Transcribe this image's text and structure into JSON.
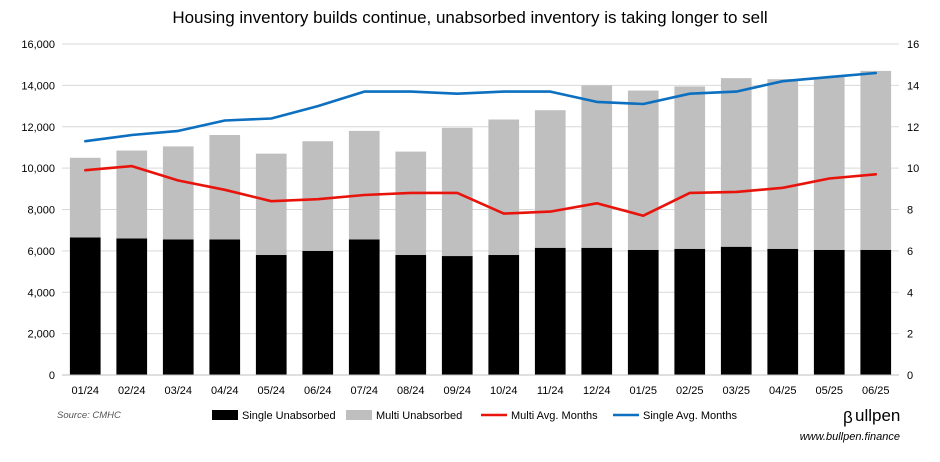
{
  "chart_data": {
    "type": "bar",
    "title": "Housing inventory builds continue, unabsorbed inventory is taking longer to sell",
    "categories": [
      "01/24",
      "02/24",
      "03/24",
      "04/24",
      "05/24",
      "06/24",
      "07/24",
      "08/24",
      "09/24",
      "10/24",
      "11/24",
      "12/24",
      "01/25",
      "02/25",
      "03/25",
      "04/25",
      "05/25",
      "06/25"
    ],
    "ylim_left": [
      0,
      16000
    ],
    "yticks_left": [
      "0",
      "2,000",
      "4,000",
      "6,000",
      "8,000",
      "10,000",
      "12,000",
      "14,000",
      "16,000"
    ],
    "ylim_right": [
      0,
      16
    ],
    "yticks_right": [
      "0",
      "2",
      "4",
      "6",
      "8",
      "10",
      "12",
      "14",
      "16"
    ],
    "series": [
      {
        "name": "Single Unabsorbed",
        "kind": "stacked-bar",
        "axis": "left",
        "values": [
          6650,
          6600,
          6550,
          6550,
          5800,
          6000,
          6550,
          5800,
          5750,
          5800,
          6150,
          6150,
          6050,
          6100,
          6200,
          6100,
          6050,
          6050
        ]
      },
      {
        "name": "Multi Unabsorbed",
        "kind": "stacked-bar",
        "axis": "left",
        "values": [
          3850,
          4250,
          4500,
          5050,
          4900,
          5300,
          5250,
          5000,
          6200,
          6550,
          6650,
          7850,
          7700,
          7850,
          8150,
          8200,
          8350,
          8650
        ]
      },
      {
        "name": "Multi Avg. Months",
        "kind": "line",
        "axis": "right",
        "values": [
          9.9,
          10.1,
          9.4,
          8.95,
          8.4,
          8.5,
          8.7,
          8.8,
          8.8,
          7.8,
          7.9,
          8.3,
          7.7,
          8.8,
          8.85,
          9.05,
          9.5,
          9.7
        ]
      },
      {
        "name": "Single Avg. Months",
        "kind": "line",
        "axis": "right",
        "values": [
          11.3,
          11.6,
          11.8,
          12.3,
          12.4,
          13.0,
          13.7,
          13.7,
          13.6,
          13.7,
          13.7,
          13.2,
          13.1,
          13.6,
          13.7,
          14.2,
          14.4,
          14.6
        ]
      }
    ],
    "grid": true,
    "legend_position": "bottom",
    "colors": {
      "single_bar": "#000000",
      "multi_bar": "#bfbfbf",
      "multi_line": "#e8140c",
      "single_line": "#0c6fbf",
      "grid": "#d9d9d9"
    }
  },
  "source": "Source: CMHC",
  "brand": "ullpen",
  "website": "www.bullpen.finance"
}
